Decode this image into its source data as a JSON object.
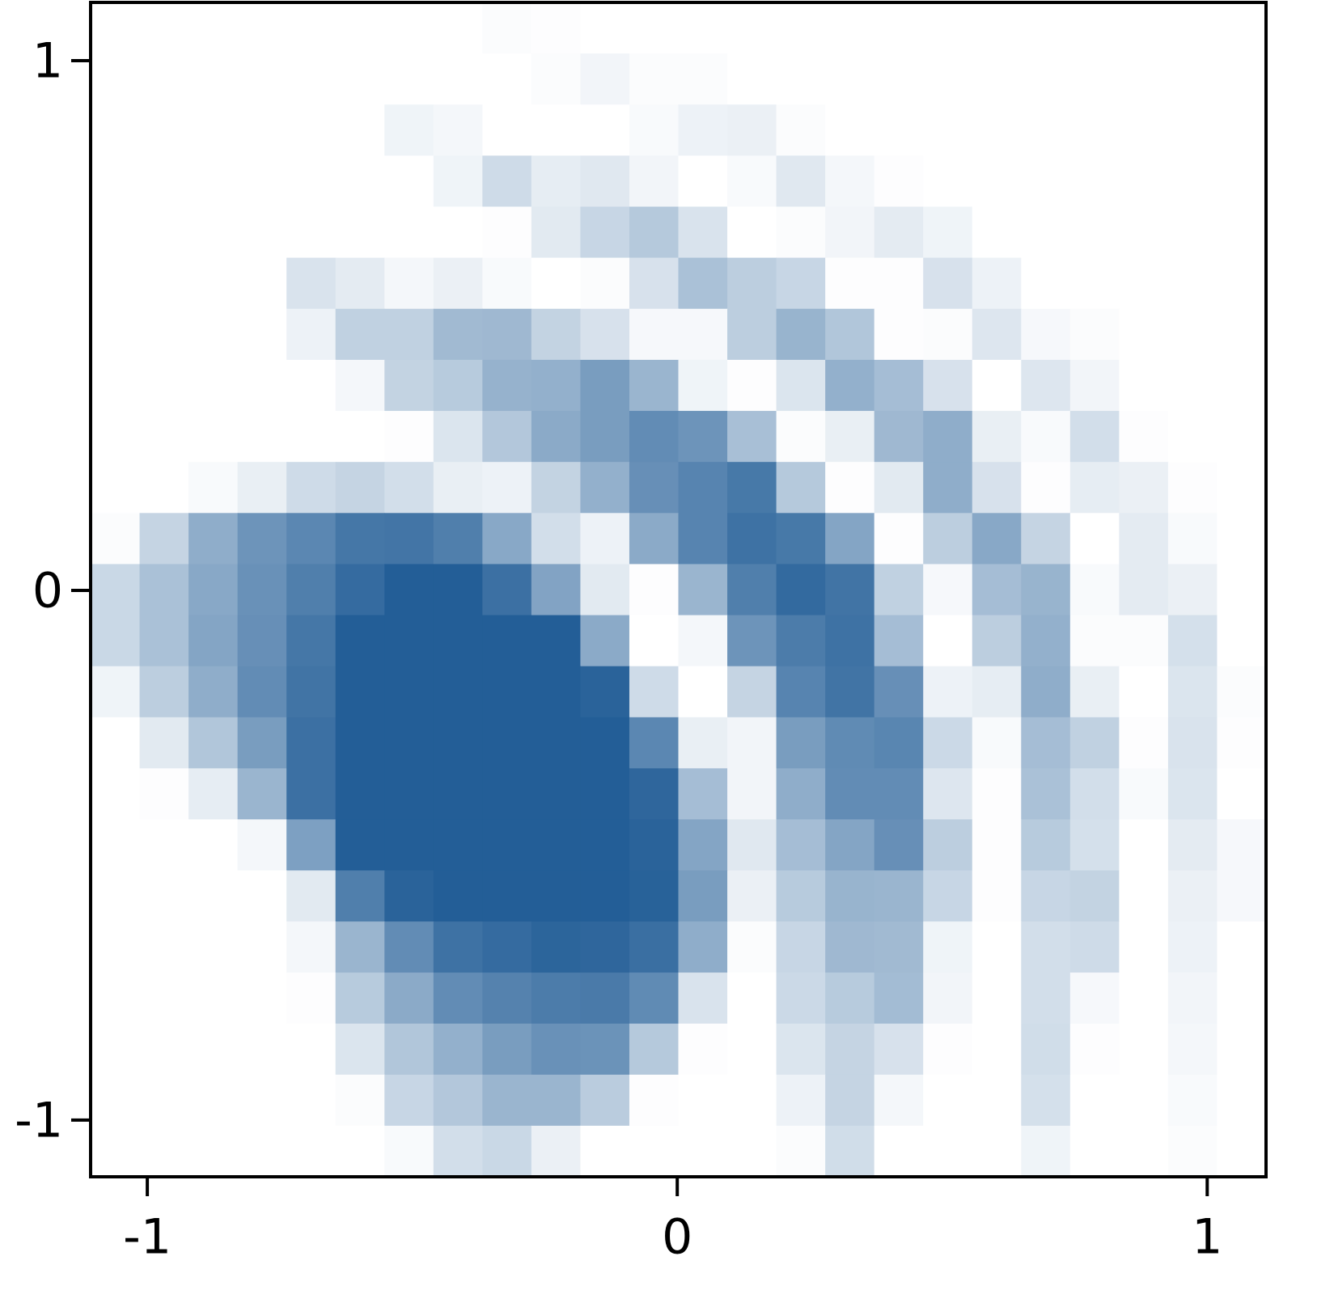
{
  "chart_data": {
    "type": "heatmap",
    "xlim": [
      -1.107,
      1.111
    ],
    "ylim": [
      -1.107,
      1.11
    ],
    "xticks": [
      -1,
      0,
      1
    ],
    "yticks": [
      -1,
      0,
      1
    ],
    "zlim": [
      0,
      10
    ],
    "colors": [
      "#ffffff",
      "#1f5b95"
    ],
    "z": [
      [
        0,
        0,
        0,
        0,
        0,
        0,
        0,
        0,
        0.2,
        0.1,
        0,
        0,
        0,
        0,
        0,
        0,
        0,
        0,
        0,
        0,
        0,
        0,
        0,
        0
      ],
      [
        0,
        0,
        0,
        0,
        0,
        0,
        0,
        0,
        0,
        0.2,
        0.6,
        0.2,
        0.2,
        0,
        0,
        0,
        0,
        0,
        0,
        0,
        0,
        0,
        0,
        0
      ],
      [
        0,
        0,
        0,
        0,
        0,
        0,
        0.7,
        0.5,
        0,
        0,
        0,
        0.3,
        0.8,
        0.9,
        0.2,
        0,
        0,
        0,
        0,
        0,
        0,
        0,
        0,
        0
      ],
      [
        0,
        0,
        0,
        0,
        0,
        0,
        0,
        0.7,
        2.2,
        1.1,
        1.4,
        0.6,
        0,
        0.3,
        1.4,
        0.5,
        0.1,
        0,
        0,
        0,
        0,
        0,
        0,
        0
      ],
      [
        0,
        0,
        0,
        0,
        0,
        0,
        0,
        0,
        0.1,
        1.3,
        2.5,
        3.3,
        1.7,
        0,
        0.2,
        0.6,
        1.2,
        0.7,
        0,
        0,
        0,
        0,
        0,
        0
      ],
      [
        0,
        0,
        0,
        0,
        1.7,
        1.2,
        0.5,
        0.9,
        0.3,
        0,
        0.2,
        1.8,
        3.8,
        3.0,
        2.5,
        0.1,
        0.1,
        1.8,
        0.8,
        0,
        0,
        0,
        0,
        0
      ],
      [
        0,
        0,
        0,
        0,
        0.8,
        2.8,
        2.8,
        4.2,
        4.3,
        2.7,
        1.8,
        0.4,
        0.4,
        3.0,
        4.6,
        3.5,
        0.1,
        0.2,
        1.5,
        0.4,
        0.2,
        0,
        0,
        0
      ],
      [
        0,
        0,
        0,
        0,
        0,
        0.5,
        2.7,
        3.2,
        4.7,
        4.8,
        6.0,
        4.5,
        0.7,
        0.1,
        1.6,
        4.8,
        4.0,
        1.8,
        0,
        1.5,
        0.6,
        0,
        0,
        0
      ],
      [
        0,
        0,
        0,
        0,
        0,
        0,
        0.1,
        1.6,
        3.4,
        5.2,
        6.0,
        7.0,
        6.5,
        3.9,
        0.2,
        1.0,
        4.3,
        5.0,
        1.0,
        0.3,
        2.0,
        0.1,
        0,
        0
      ],
      [
        0,
        0,
        0.3,
        1.0,
        2.2,
        2.6,
        2.0,
        1.0,
        0.8,
        2.7,
        4.8,
        6.8,
        7.5,
        8.2,
        3.3,
        0.1,
        1.3,
        5.0,
        1.8,
        0.1,
        1.1,
        0.9,
        0.1,
        0
      ],
      [
        0.2,
        2.6,
        5.0,
        6.5,
        7.3,
        8.3,
        8.4,
        7.8,
        5.3,
        2.0,
        0.8,
        5.2,
        7.5,
        8.6,
        8.2,
        5.5,
        0.1,
        3.0,
        5.3,
        2.6,
        0,
        1.2,
        0.3,
        0
      ],
      [
        2.4,
        3.8,
        5.3,
        6.7,
        7.8,
        9.0,
        9.8,
        9.8,
        8.7,
        5.6,
        1.3,
        0.1,
        4.5,
        7.8,
        9.1,
        8.5,
        2.8,
        0.4,
        4.0,
        4.6,
        0.3,
        1.2,
        0.9,
        0
      ],
      [
        2.4,
        3.8,
        5.5,
        6.8,
        8.3,
        9.8,
        9.8,
        9.8,
        9.8,
        9.8,
        5.2,
        0,
        0.5,
        6.5,
        8.0,
        8.6,
        4.0,
        0,
        3.0,
        4.8,
        0.2,
        0.2,
        1.9,
        0
      ],
      [
        0.7,
        3.0,
        5.0,
        7.0,
        8.5,
        9.8,
        9.8,
        9.8,
        9.8,
        9.8,
        9.5,
        2.2,
        0,
        2.6,
        7.5,
        8.5,
        6.8,
        0.8,
        1.1,
        5.0,
        1.0,
        0,
        1.6,
        0.2
      ],
      [
        0,
        1.3,
        3.5,
        6.0,
        8.7,
        9.8,
        9.8,
        9.8,
        9.8,
        9.8,
        9.8,
        7.3,
        1.0,
        0.6,
        6.0,
        7.1,
        7.4,
        2.3,
        0.3,
        4.0,
        2.8,
        0.1,
        1.7,
        0.1
      ],
      [
        0,
        0.1,
        1.1,
        4.5,
        8.7,
        9.8,
        9.8,
        9.8,
        9.8,
        9.8,
        9.8,
        9.3,
        4.0,
        0.6,
        5.0,
        7.0,
        7.0,
        1.5,
        0.1,
        3.8,
        2.0,
        0.3,
        1.6,
        0
      ],
      [
        0,
        0,
        0,
        0.5,
        5.8,
        9.8,
        9.8,
        9.8,
        9.8,
        9.8,
        9.8,
        9.5,
        5.5,
        1.4,
        4.0,
        5.5,
        6.8,
        3.0,
        0.1,
        3.2,
        1.9,
        0,
        1.2,
        0.4
      ],
      [
        0,
        0,
        0,
        0,
        1.3,
        7.8,
        9.5,
        9.8,
        9.8,
        9.8,
        9.8,
        9.6,
        6.0,
        0.9,
        3.2,
        4.6,
        4.5,
        2.5,
        0.1,
        2.5,
        2.7,
        0,
        0.9,
        0.4
      ],
      [
        0,
        0,
        0,
        0,
        0.5,
        4.5,
        7.0,
        8.6,
        9.0,
        9.4,
        9.3,
        8.8,
        5.0,
        0.2,
        2.5,
        4.3,
        4.2,
        0.7,
        0,
        2.0,
        2.2,
        0,
        0.8,
        0
      ],
      [
        0,
        0,
        0,
        0,
        0.1,
        3.2,
        5.2,
        7.0,
        7.6,
        8.0,
        8.1,
        7.1,
        1.7,
        0,
        2.3,
        3.2,
        4.1,
        0.6,
        0,
        2.0,
        0.4,
        0,
        0.6,
        0
      ],
      [
        0,
        0,
        0,
        0,
        0,
        1.6,
        3.5,
        4.8,
        6.0,
        6.7,
        6.6,
        3.3,
        0.1,
        0,
        1.6,
        2.6,
        1.8,
        0.1,
        0,
        2.1,
        0.1,
        0,
        0.5,
        0
      ],
      [
        0,
        0,
        0,
        0,
        0,
        0.2,
        2.5,
        3.4,
        4.5,
        4.5,
        3.1,
        0.1,
        0,
        0,
        0.8,
        2.6,
        0.5,
        0,
        0,
        1.9,
        0,
        0,
        0.3,
        0
      ],
      [
        0,
        0,
        0,
        0,
        0,
        0,
        0.3,
        2.0,
        2.4,
        0.9,
        0,
        0,
        0,
        0,
        0.2,
        2.1,
        0,
        0,
        0,
        0.7,
        0,
        0,
        0.2,
        0
      ]
    ]
  }
}
